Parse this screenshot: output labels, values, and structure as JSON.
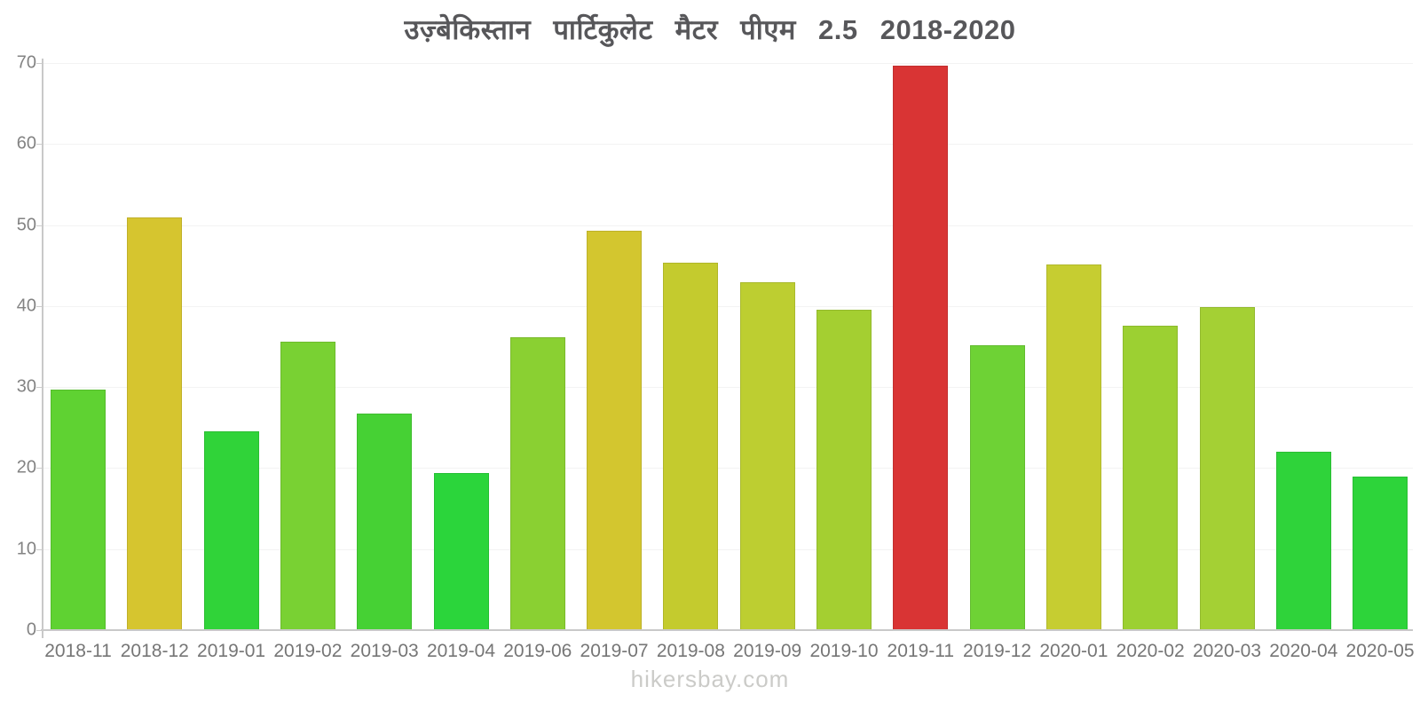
{
  "title": {
    "text": "उज़्बेकिस्तान पार्टिकुलेट मैटर पीएम 2.5 2018-2020",
    "color": "#57575a"
  },
  "footer": {
    "text": "hikersbay.com",
    "color": "#cbcbc8"
  },
  "y_axis": {
    "tick_labels": [
      "0",
      "10",
      "20",
      "30",
      "40",
      "50",
      "60",
      "70"
    ],
    "tick_values": [
      0,
      10,
      20,
      30,
      40,
      50,
      60,
      70
    ]
  },
  "chart_data": {
    "type": "bar",
    "title": "उज़्बेकिस्तान पार्टिकुलेट मैटर पीएम 2.5 2018-2020",
    "xlabel": "",
    "ylabel": "",
    "ylim": [
      0,
      70
    ],
    "yticks": [
      0,
      10,
      20,
      30,
      40,
      50,
      60,
      70
    ],
    "grid": true,
    "legend": "none",
    "categories": [
      "2018-11",
      "2018-12",
      "2019-01",
      "2019-02",
      "2019-03",
      "2019-04",
      "2019-06",
      "2019-07",
      "2019-08",
      "2019-09",
      "2019-10",
      "2019-11",
      "2019-12",
      "2020-01",
      "2020-02",
      "2020-03",
      "2020-04",
      "2020-05"
    ],
    "values": [
      29.7,
      50.9,
      24.5,
      35.6,
      26.7,
      19.4,
      36.2,
      49.3,
      45.3,
      42.9,
      39.6,
      69.7,
      35.2,
      45.1,
      37.6,
      39.9,
      22.0,
      19.0
    ],
    "bar_colors": [
      "#5fd232",
      "#d6c52f",
      "#30d339",
      "#79d133",
      "#46d134",
      "#2bd53b",
      "#8ad032",
      "#d3c62f",
      "#c4cb2e",
      "#bdce31",
      "#a4cf31",
      "#d93434",
      "#6ed235",
      "#c6cd31",
      "#9cd032",
      "#a4d034",
      "#2fd33a",
      "#2dd43a"
    ],
    "highlight": {
      "category": "2019-11",
      "value": 69.7,
      "color": "#d93434"
    },
    "notes": "month 2019-05 absent from axis"
  }
}
